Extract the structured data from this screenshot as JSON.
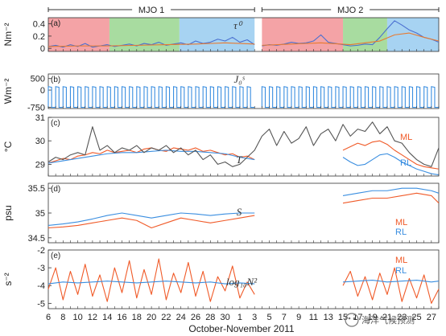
{
  "chart_data": {
    "type": "line",
    "xlabel": "October-November 2011",
    "x_ticks": [
      "6",
      "7",
      "8",
      "9",
      "10",
      "11",
      "12",
      "13",
      "14",
      "15",
      "16",
      "17",
      "18",
      "19",
      "20",
      "21",
      "22",
      "23",
      "24",
      "25",
      "26",
      "27",
      "28",
      "29",
      "30",
      "31",
      "1",
      "2",
      "3",
      "4",
      "5",
      "6",
      "7",
      "8",
      "9",
      "10",
      "11",
      "12",
      "13",
      "14",
      "15",
      "16",
      "17",
      "18",
      "19",
      "20",
      "21",
      "22",
      "23",
      "24",
      "25",
      "26",
      "27",
      "28"
    ],
    "x_tick_labels": [
      "6",
      "8",
      "10",
      "12",
      "14",
      "16",
      "18",
      "20",
      "22",
      "24",
      "26",
      "28",
      "30",
      "1",
      "3",
      "5",
      "7",
      "9",
      "11",
      "13",
      "15",
      "17",
      "19",
      "21",
      "23",
      "25",
      "27"
    ],
    "mjo_events": [
      {
        "label": "MJO 1",
        "start": 0,
        "end": 28
      },
      {
        "label": "MJO 2",
        "start": 29,
        "end": 53
      }
    ],
    "phases": [
      {
        "start": 0,
        "end": 8.3,
        "color": "#f4a3a6"
      },
      {
        "start": 8.3,
        "end": 17.8,
        "color": "#a8dca0"
      },
      {
        "start": 17.8,
        "end": 28,
        "color": "#a7d3f2"
      },
      {
        "start": 29,
        "end": 40,
        "color": "#f4a3a6"
      },
      {
        "start": 40,
        "end": 46,
        "color": "#a8dca0"
      },
      {
        "start": 46,
        "end": 53,
        "color": "#a7d3f2"
      }
    ],
    "panels": [
      {
        "label": "(a)",
        "ylabel": "Nm⁻²",
        "var": "τ⁰",
        "ylim": [
          -0.05,
          0.5
        ],
        "yticks": [
          "0.4",
          "0.2",
          "0"
        ],
        "ytick_values": [
          0.4,
          0.2,
          0
        ]
      },
      {
        "label": "(b)",
        "ylabel": "Wm⁻²",
        "var": "J₀ˢ",
        "ylim": [
          -800,
          700
        ],
        "yticks": [
          "500",
          "0",
          "-750"
        ],
        "ytick_values": [
          500,
          0,
          -750
        ]
      },
      {
        "label": "(c)",
        "ylabel": "°C",
        "var": "T",
        "ylim": [
          28.5,
          31
        ],
        "yticks": [
          "31",
          "30",
          "29",
          "28"
        ],
        "ytick_values": [
          31,
          30,
          29,
          28
        ],
        "series_labels": [
          "ML",
          "RL"
        ]
      },
      {
        "label": "(d)",
        "ylabel": "psu",
        "var": "S",
        "ylim": [
          34.4,
          35.6
        ],
        "yticks": [
          "35.5",
          "35",
          "34.5"
        ],
        "ytick_values": [
          35.5,
          35,
          34.5
        ],
        "series_labels": [
          "ML",
          "RL"
        ]
      },
      {
        "label": "(e)",
        "ylabel": "s⁻²",
        "var": "log₁₀N²",
        "ylim": [
          -5.3,
          -2
        ],
        "yticks": [
          "-2",
          "-3",
          "-4",
          "-5"
        ],
        "ytick_values": [
          -2,
          -3,
          -4,
          -5
        ],
        "series_labels": [
          "ML",
          "RL"
        ]
      }
    ],
    "series": [
      {
        "panel": 0,
        "color": "#4a6fd0",
        "segments": [
          {
            "x": [
              0,
              1,
              2,
              3,
              4,
              5,
              6,
              7,
              8,
              9,
              10,
              11,
              12,
              13,
              14,
              15,
              16,
              17,
              18,
              19,
              20,
              21,
              22,
              23,
              24,
              25,
              26,
              27,
              28
            ],
            "y": [
              0.03,
              0.05,
              0.02,
              0.06,
              0.03,
              0.08,
              0.02,
              0.04,
              0.06,
              0.03,
              0.05,
              0.07,
              0.04,
              0.08,
              0.06,
              0.1,
              0.05,
              0.07,
              0.09,
              0.06,
              0.12,
              0.08,
              0.1,
              0.15,
              0.12,
              0.18,
              0.1,
              0.14,
              0.06
            ]
          },
          {
            "x": [
              29,
              30,
              31,
              32,
              33,
              34,
              35,
              36,
              37,
              38,
              39,
              40,
              41,
              42,
              43,
              44,
              45,
              46,
              47,
              48,
              49,
              50,
              51,
              52,
              53
            ],
            "y": [
              0.04,
              0.06,
              0.05,
              0.07,
              0.1,
              0.08,
              0.09,
              0.12,
              0.22,
              0.1,
              0.08,
              0.06,
              0.04,
              0.05,
              0.07,
              0.06,
              0.18,
              0.32,
              0.45,
              0.38,
              0.3,
              0.25,
              0.18,
              0.15,
              0.1
            ]
          }
        ]
      },
      {
        "panel": 0,
        "color": "#e87a30",
        "segments": [
          {
            "x": [
              0,
              4,
              8,
              12,
              16,
              20,
              24,
              28
            ],
            "y": [
              0.03,
              0.04,
              0.04,
              0.05,
              0.06,
              0.07,
              0.09,
              0.07
            ]
          },
          {
            "x": [
              29,
              33,
              37,
              41,
              45,
              47,
              49,
              51,
              53
            ],
            "y": [
              0.05,
              0.07,
              0.09,
              0.06,
              0.12,
              0.22,
              0.25,
              0.18,
              0.12
            ]
          }
        ]
      },
      {
        "panel": 1,
        "name": "J₀ˢ",
        "color": "#3a8ee0",
        "daily_cycle": {
          "x_start": 0,
          "x_end": 53,
          "day_value": 150,
          "night_value": -750
        }
      },
      {
        "panel": 2,
        "name": "ML",
        "color": "#f05a28",
        "segments": [
          {
            "x": [
              0,
              1,
              2,
              3,
              4,
              5,
              6,
              7,
              8,
              9,
              10,
              11,
              12,
              13,
              14,
              15,
              16,
              17,
              18,
              19,
              20,
              21,
              22,
              23,
              24,
              25,
              26,
              27,
              28
            ],
            "y": [
              29.05,
              29.15,
              29.25,
              29.2,
              29.35,
              29.4,
              29.5,
              29.45,
              29.6,
              29.5,
              29.55,
              29.6,
              29.5,
              29.65,
              29.7,
              29.6,
              29.55,
              29.7,
              29.65,
              29.6,
              29.7,
              29.55,
              29.6,
              29.5,
              29.4,
              29.45,
              29.3,
              29.35,
              29.2
            ]
          },
          {
            "x": [
              40,
              41,
              42,
              43,
              44,
              45,
              46,
              47,
              48,
              49,
              50,
              51,
              52,
              53
            ],
            "y": [
              29.6,
              29.75,
              29.9,
              29.8,
              29.95,
              30.0,
              29.85,
              29.6,
              29.4,
              29.2,
              29.0,
              28.9,
              28.85,
              28.8
            ]
          }
        ]
      },
      {
        "panel": 2,
        "name": "RL",
        "color": "#3a8ee0",
        "segments": [
          {
            "x": [
              0,
              2,
              4,
              6,
              8,
              10,
              12,
              14,
              16,
              18,
              20,
              22,
              24,
              26,
              28
            ],
            "y": [
              29.05,
              29.15,
              29.25,
              29.35,
              29.45,
              29.5,
              29.5,
              29.55,
              29.6,
              29.55,
              29.55,
              29.5,
              29.45,
              29.3,
              29.2
            ]
          },
          {
            "x": [
              40,
              41,
              42,
              43,
              44,
              45,
              46,
              47,
              48,
              49,
              50,
              51,
              52,
              53
            ],
            "y": [
              29.3,
              29.1,
              28.95,
              29.0,
              29.2,
              29.4,
              29.45,
              29.3,
              29.1,
              28.95,
              28.8,
              28.7,
              28.6,
              28.55
            ]
          }
        ]
      },
      {
        "panel": 2,
        "name": "T",
        "color": "#555555",
        "segments": [
          {
            "x": [
              0,
              1,
              2,
              3,
              4,
              5,
              6,
              7,
              8,
              9,
              10,
              11,
              12,
              13,
              14,
              15,
              16,
              17,
              18,
              19,
              20,
              21,
              22,
              23,
              24,
              25,
              26,
              27,
              28,
              29,
              30,
              31,
              32,
              33,
              34,
              35,
              36,
              37,
              38,
              39,
              40,
              41,
              42,
              43,
              44,
              45,
              46,
              47,
              48,
              49,
              50,
              51,
              52,
              53
            ],
            "y": [
              29.1,
              29.3,
              29.2,
              29.4,
              29.5,
              29.4,
              30.6,
              29.6,
              29.8,
              29.5,
              29.7,
              29.6,
              29.8,
              29.5,
              29.7,
              29.6,
              29.8,
              29.5,
              29.7,
              29.4,
              29.6,
              29.2,
              29.4,
              29.0,
              29.1,
              28.9,
              29.0,
              29.3,
              29.6,
              30.2,
              30.5,
              29.8,
              30.4,
              29.9,
              30.1,
              30.6,
              29.8,
              30.3,
              30.5,
              30.0,
              30.7,
              30.2,
              30.5,
              30.4,
              30.8,
              30.3,
              30.6,
              30.0,
              29.9,
              29.5,
              29.2,
              29.0,
              28.9,
              29.7
            ]
          }
        ]
      },
      {
        "panel": 3,
        "name": "ML",
        "color": "#f05a28",
        "segments": [
          {
            "x": [
              0,
              2,
              4,
              6,
              8,
              10,
              12,
              14,
              16,
              18,
              20,
              22,
              24,
              26,
              28
            ],
            "y": [
              34.7,
              34.72,
              34.75,
              34.8,
              34.85,
              34.9,
              34.85,
              34.7,
              34.8,
              34.9,
              34.85,
              34.8,
              34.85,
              34.9,
              34.95
            ]
          },
          {
            "x": [
              40,
              42,
              44,
              46,
              48,
              50,
              52,
              53
            ],
            "y": [
              35.2,
              35.25,
              35.3,
              35.3,
              35.35,
              35.4,
              35.35,
              35.2
            ]
          }
        ]
      },
      {
        "panel": 3,
        "name": "RL",
        "color": "#3a8ee0",
        "segments": [
          {
            "x": [
              0,
              2,
              4,
              6,
              8,
              10,
              12,
              14,
              16,
              18,
              20,
              22,
              24,
              26,
              28
            ],
            "y": [
              34.75,
              34.78,
              34.82,
              34.88,
              34.95,
              35.0,
              34.95,
              34.9,
              34.95,
              35.0,
              34.98,
              34.95,
              34.98,
              35.0,
              35.0
            ]
          },
          {
            "x": [
              40,
              42,
              44,
              46,
              48,
              50,
              52,
              53
            ],
            "y": [
              35.35,
              35.4,
              35.45,
              35.45,
              35.5,
              35.5,
              35.45,
              35.4
            ]
          }
        ]
      },
      {
        "panel": 4,
        "name": "ML",
        "color": "#f05a28",
        "segments": [
          {
            "x": [
              0,
              1,
              2,
              3,
              4,
              5,
              6,
              7,
              8,
              9,
              10,
              11,
              12,
              13,
              14,
              15,
              16,
              17,
              18,
              19,
              20,
              21,
              22,
              23,
              24,
              25,
              26,
              27,
              28
            ],
            "y": [
              -4.2,
              -3.0,
              -4.8,
              -3.2,
              -4.5,
              -2.8,
              -4.6,
              -3.4,
              -4.9,
              -3.0,
              -4.4,
              -2.6,
              -4.7,
              -3.1,
              -4.5,
              -2.5,
              -4.8,
              -3.3,
              -4.4,
              -2.7,
              -4.6,
              -3.2,
              -4.9,
              -3.5,
              -4.3,
              -2.9,
              -4.7,
              -3.8,
              -4.5
            ]
          },
          {
            "x": [
              40,
              41,
              42,
              43,
              44,
              45,
              46,
              47,
              48,
              49,
              50,
              51,
              52,
              53
            ],
            "y": [
              -4.0,
              -3.2,
              -4.6,
              -3.5,
              -4.8,
              -3.3,
              -4.5,
              -3.0,
              -4.9,
              -3.6,
              -4.7,
              -3.4,
              -5.0,
              -4.2
            ]
          }
        ]
      },
      {
        "panel": 4,
        "name": "RL",
        "color": "#3a8ee0",
        "segments": [
          {
            "x": [
              0,
              2,
              4,
              6,
              8,
              10,
              12,
              14,
              16,
              18,
              20,
              22,
              24,
              26,
              28
            ],
            "y": [
              -3.9,
              -3.8,
              -3.85,
              -3.8,
              -3.75,
              -3.8,
              -3.85,
              -3.8,
              -3.75,
              -3.8,
              -3.85,
              -3.8,
              -3.9,
              -3.85,
              -3.9
            ]
          },
          {
            "x": [
              40,
              42,
              44,
              46,
              48,
              50,
              52,
              53
            ],
            "y": [
              -3.8,
              -3.75,
              -3.7,
              -3.8,
              -3.75,
              -3.7,
              -3.8,
              -3.75
            ]
          }
        ]
      }
    ]
  },
  "watermark": "海洋气候预测"
}
